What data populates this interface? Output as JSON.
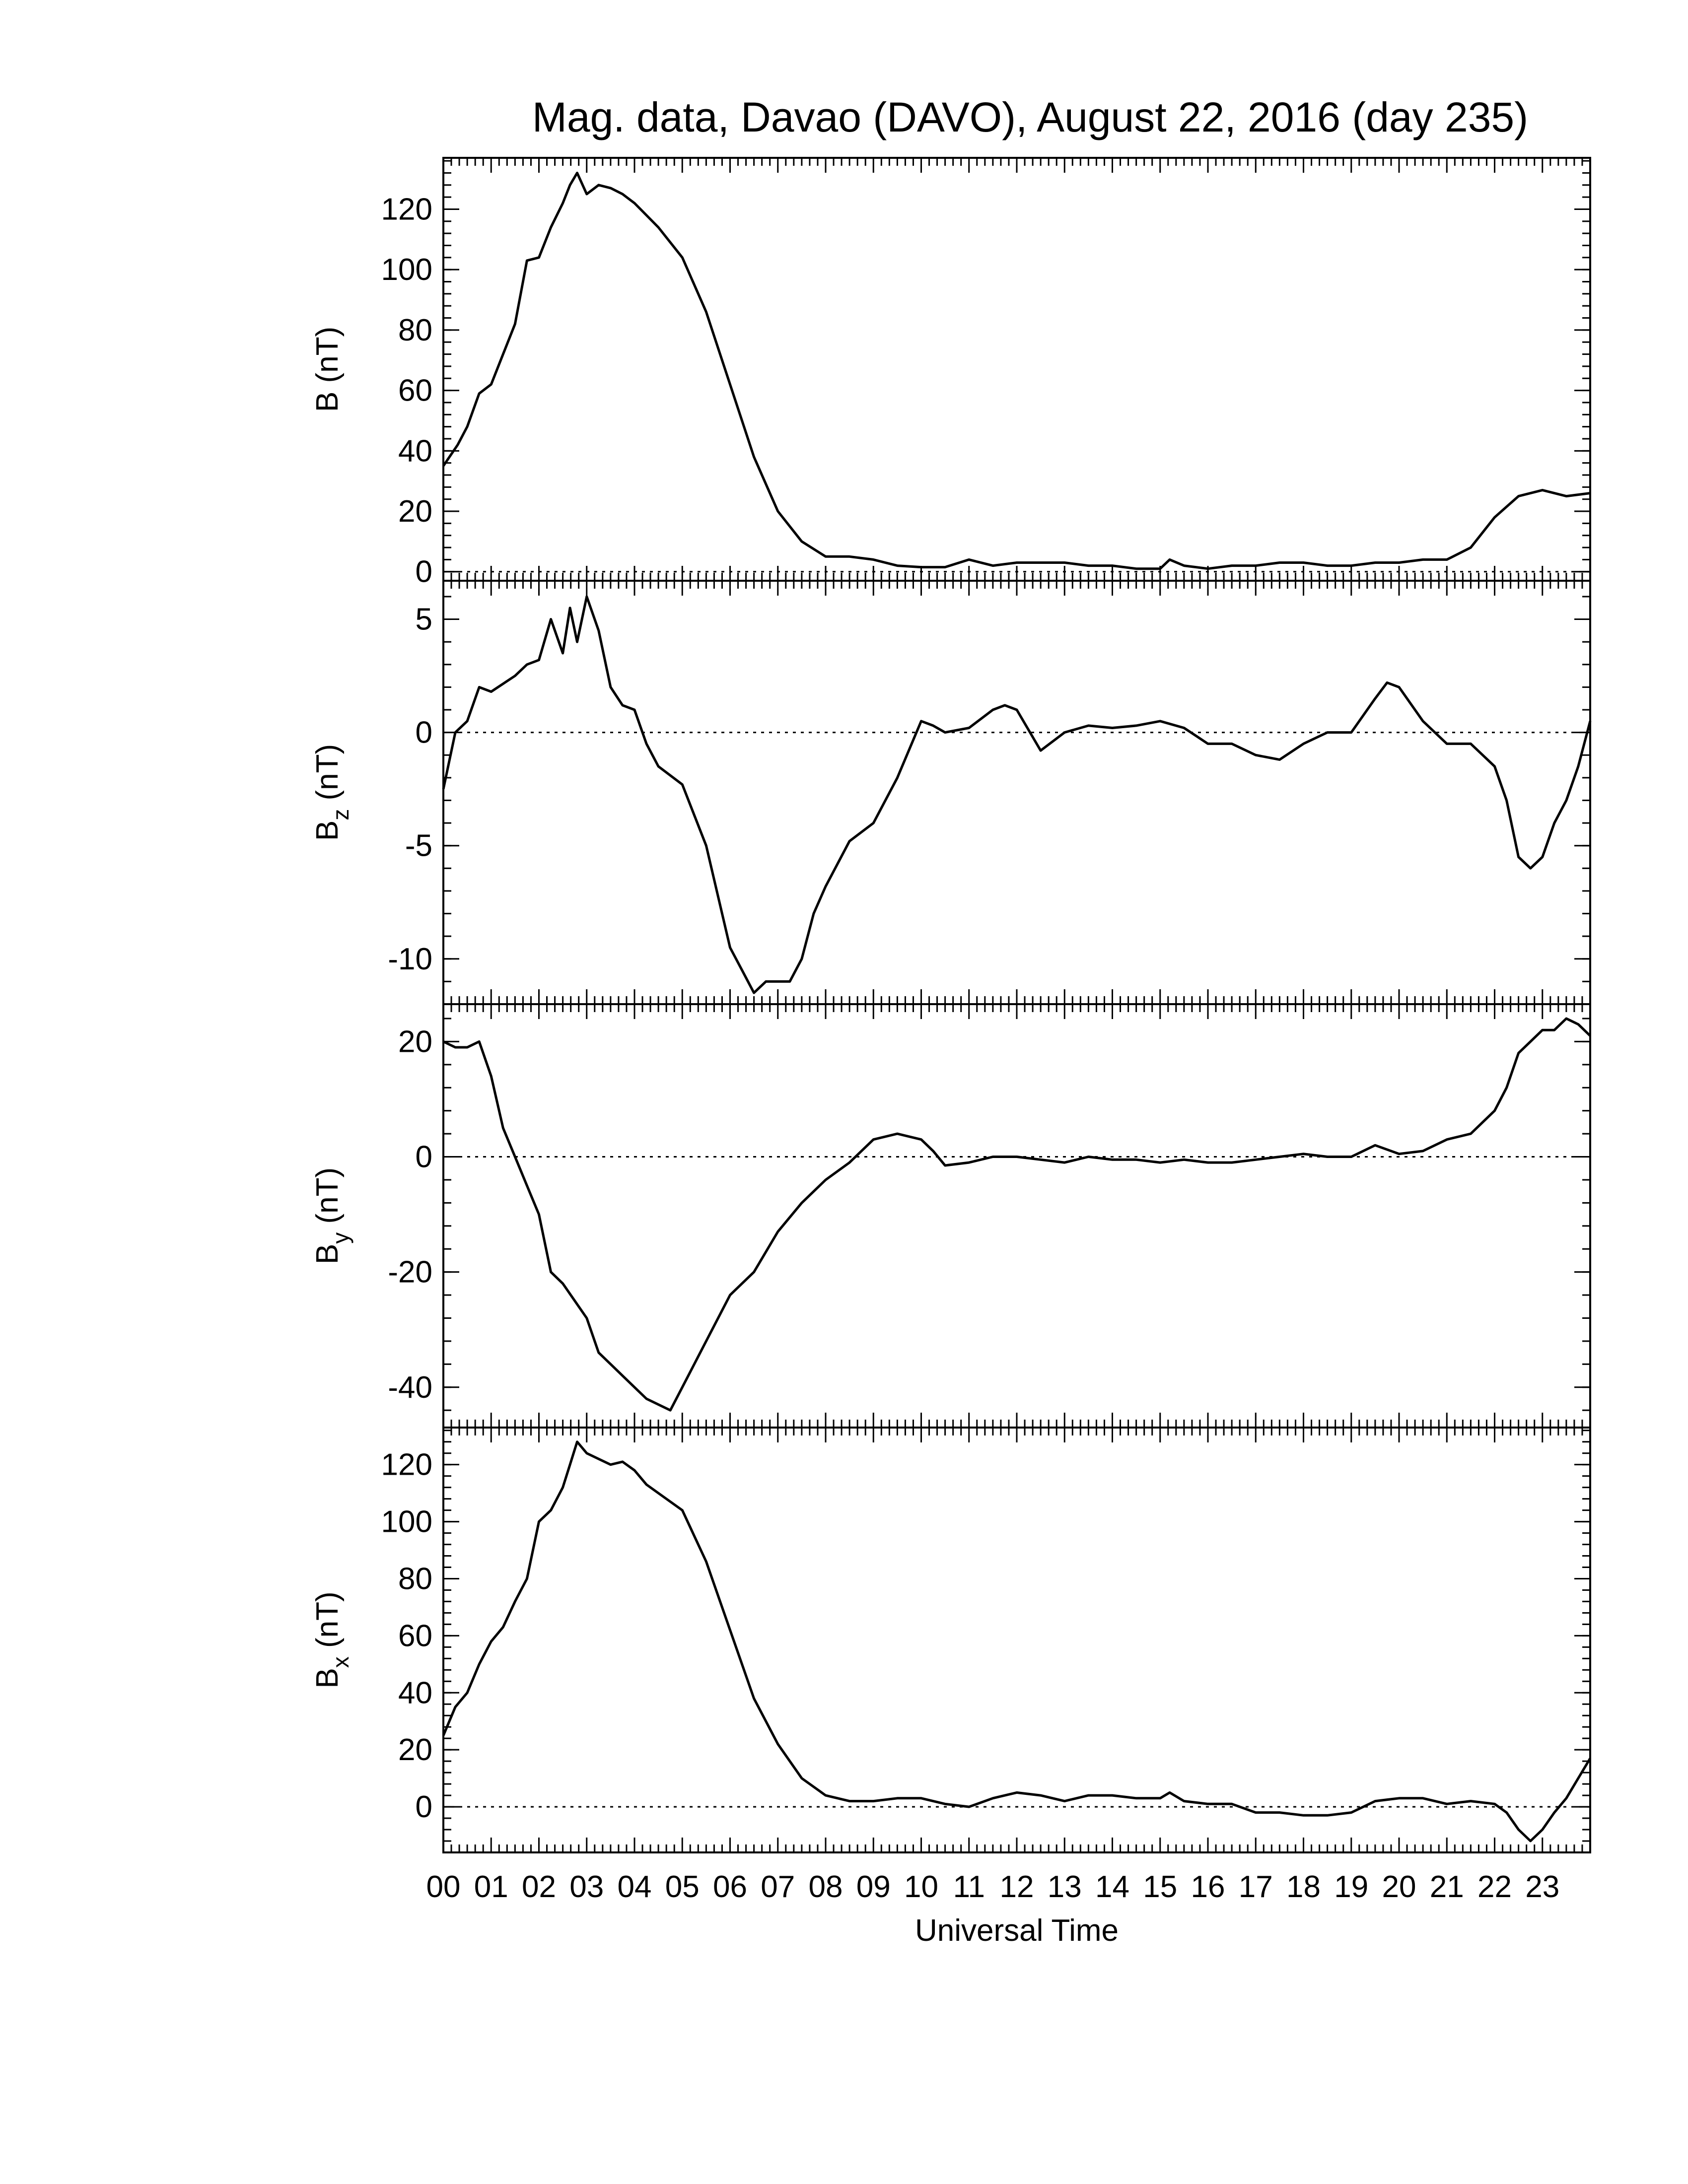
{
  "chart_data": {
    "type": "line",
    "title": "Mag. data, Davao (DAVO), August 22, 2016 (day 235)",
    "xlabel": "Universal Time",
    "x_tick_labels": [
      "00",
      "01",
      "02",
      "03",
      "04",
      "05",
      "06",
      "07",
      "08",
      "09",
      "10",
      "11",
      "12",
      "13",
      "14",
      "15",
      "16",
      "17",
      "18",
      "19",
      "20",
      "21",
      "22",
      "23"
    ],
    "xlim": [
      0,
      24
    ],
    "panels": [
      {
        "id": "B",
        "ylabel_main": "B",
        "ylabel_sub": "",
        "ylabel_unit": " (nT)",
        "ylim": [
          -3,
          137
        ],
        "yticks": [
          0,
          20,
          40,
          60,
          80,
          100,
          120
        ],
        "yticklabels": [
          "0",
          "20",
          "40",
          "60",
          "80",
          "100",
          "120"
        ],
        "zero_line": true,
        "x": [
          0,
          0.3,
          0.5,
          0.75,
          1.0,
          1.25,
          1.5,
          1.75,
          2.0,
          2.25,
          2.5,
          2.65,
          2.8,
          3.0,
          3.25,
          3.5,
          3.75,
          4.0,
          4.25,
          4.5,
          5.0,
          5.5,
          6.0,
          6.5,
          7.0,
          7.5,
          8.0,
          8.5,
          9.0,
          9.5,
          10.0,
          10.5,
          11.0,
          11.5,
          12.0,
          12.5,
          13.0,
          13.5,
          14.0,
          14.5,
          15.0,
          15.2,
          15.5,
          16.0,
          16.5,
          17.0,
          17.5,
          18.0,
          18.5,
          19.0,
          19.5,
          20.0,
          20.5,
          21.0,
          21.5,
          22.0,
          22.5,
          23.0,
          23.5,
          24.0
        ],
        "values": [
          35,
          42,
          48,
          59,
          62,
          72,
          82,
          103,
          104,
          114,
          122,
          128,
          132,
          125,
          128,
          127,
          125,
          122,
          118,
          114,
          104,
          86,
          62,
          38,
          20,
          10,
          5,
          5,
          4,
          2,
          1.5,
          1.5,
          4,
          2,
          3,
          3,
          3,
          2,
          2,
          1,
          1,
          4,
          2,
          1,
          2,
          2,
          3,
          3,
          2,
          2,
          3,
          3,
          4,
          4,
          8,
          18,
          25,
          27,
          25,
          26
        ]
      },
      {
        "id": "Bz",
        "ylabel_main": "B",
        "ylabel_sub": "z",
        "ylabel_unit": " (nT)",
        "ylim": [
          -12,
          6.7
        ],
        "yticks": [
          -10,
          -5,
          0,
          5
        ],
        "yticklabels": [
          "-10",
          "-5",
          "0",
          "5"
        ],
        "zero_line": true,
        "x": [
          0,
          0.25,
          0.5,
          0.75,
          1.0,
          1.5,
          1.75,
          2.0,
          2.25,
          2.5,
          2.65,
          2.8,
          3.0,
          3.25,
          3.5,
          3.75,
          4.0,
          4.25,
          4.5,
          5.0,
          5.5,
          6.0,
          6.25,
          6.5,
          6.75,
          7.0,
          7.25,
          7.5,
          7.75,
          8.0,
          8.5,
          9.0,
          9.5,
          10.0,
          10.25,
          10.5,
          11.0,
          11.5,
          11.75,
          12.0,
          12.5,
          13.0,
          13.5,
          14.0,
          14.5,
          15.0,
          15.5,
          16.0,
          16.5,
          17.0,
          17.5,
          18.0,
          18.5,
          19.0,
          19.5,
          19.75,
          20.0,
          20.5,
          21.0,
          21.5,
          22.0,
          22.25,
          22.5,
          22.75,
          23.0,
          23.25,
          23.5,
          23.75,
          24.0
        ],
        "values": [
          -2.5,
          0,
          0.5,
          2,
          1.8,
          2.5,
          3,
          3.2,
          5,
          3.5,
          5.5,
          4,
          6,
          4.5,
          2,
          1.2,
          1,
          -0.5,
          -1.5,
          -2.3,
          -5,
          -9.5,
          -10.5,
          -11.5,
          -11,
          -11,
          -11,
          -10,
          -8,
          -6.8,
          -4.8,
          -4,
          -2,
          0.5,
          0.3,
          0,
          0.2,
          1,
          1.2,
          1,
          -0.8,
          0,
          0.3,
          0.2,
          0.3,
          0.5,
          0.2,
          -0.5,
          -0.5,
          -1,
          -1.2,
          -0.5,
          0,
          0,
          1.5,
          2.2,
          2,
          0.5,
          -0.5,
          -0.5,
          -1.5,
          -3,
          -5.5,
          -6,
          -5.5,
          -4,
          -3,
          -1.5,
          0.5
        ]
      },
      {
        "id": "By",
        "ylabel_main": "B",
        "ylabel_sub": "y",
        "ylabel_unit": " (nT)",
        "ylim": [
          -47,
          26.5
        ],
        "yticks": [
          -40,
          -20,
          0,
          20
        ],
        "yticklabels": [
          "-40",
          "-20",
          "0",
          "20"
        ],
        "zero_line": true,
        "x": [
          0,
          0.25,
          0.5,
          0.75,
          1.0,
          1.25,
          1.5,
          1.75,
          2.0,
          2.25,
          2.5,
          2.75,
          3.0,
          3.25,
          3.5,
          3.75,
          4.0,
          4.25,
          4.5,
          4.75,
          5.0,
          5.5,
          6.0,
          6.5,
          7.0,
          7.5,
          8.0,
          8.5,
          9.0,
          9.5,
          10.0,
          10.25,
          10.5,
          11.0,
          11.5,
          12.0,
          12.5,
          13.0,
          13.5,
          14.0,
          14.5,
          15.0,
          15.5,
          16.0,
          16.5,
          17.0,
          17.5,
          18.0,
          18.5,
          19.0,
          19.5,
          20.0,
          20.5,
          21.0,
          21.5,
          22.0,
          22.25,
          22.5,
          22.75,
          23.0,
          23.25,
          23.5,
          23.75,
          24.0
        ],
        "values": [
          20,
          19,
          19,
          20,
          14,
          5,
          0,
          -5,
          -10,
          -20,
          -22,
          -25,
          -28,
          -34,
          -36,
          -38,
          -40,
          -42,
          -43,
          -44,
          -40,
          -32,
          -24,
          -20,
          -13,
          -8,
          -4,
          -1,
          3,
          4,
          3,
          1,
          -1.5,
          -1,
          0,
          0,
          -0.5,
          -1,
          0,
          -0.5,
          -0.5,
          -1,
          -0.5,
          -1,
          -1,
          -0.5,
          0,
          0.5,
          0,
          0,
          2,
          0.5,
          1,
          3,
          4,
          8,
          12,
          18,
          20,
          22,
          22,
          24,
          23,
          21
        ]
      },
      {
        "id": "Bx",
        "ylabel_main": "B",
        "ylabel_sub": "x",
        "ylabel_unit": " (nT)",
        "ylim": [
          -16,
          133
        ],
        "yticks": [
          0,
          20,
          40,
          60,
          80,
          100,
          120
        ],
        "yticklabels": [
          "0",
          "20",
          "40",
          "60",
          "80",
          "100",
          "120"
        ],
        "zero_line": true,
        "x": [
          0,
          0.25,
          0.5,
          0.75,
          1.0,
          1.25,
          1.5,
          1.75,
          2.0,
          2.25,
          2.5,
          2.65,
          2.8,
          3.0,
          3.25,
          3.5,
          3.75,
          4.0,
          4.25,
          4.5,
          5.0,
          5.5,
          6.0,
          6.5,
          7.0,
          7.5,
          8.0,
          8.5,
          9.0,
          9.5,
          10.0,
          10.5,
          11.0,
          11.5,
          12.0,
          12.5,
          13.0,
          13.5,
          14.0,
          14.5,
          15.0,
          15.2,
          15.5,
          16.0,
          16.5,
          17.0,
          17.5,
          18.0,
          18.5,
          19.0,
          19.5,
          20.0,
          20.5,
          21.0,
          21.5,
          22.0,
          22.25,
          22.5,
          22.75,
          23.0,
          23.25,
          23.5,
          23.75,
          24.0
        ],
        "values": [
          25,
          35,
          40,
          50,
          58,
          63,
          72,
          80,
          100,
          104,
          112,
          120,
          128,
          124,
          122,
          120,
          121,
          118,
          113,
          110,
          104,
          86,
          62,
          38,
          22,
          10,
          4,
          2,
          2,
          3,
          3,
          1,
          0,
          3,
          5,
          4,
          2,
          4,
          4,
          3,
          3,
          5,
          2,
          1,
          1,
          -2,
          -2,
          -3,
          -3,
          -2,
          2,
          3,
          3,
          1,
          2,
          1,
          -2,
          -8,
          -12,
          -8,
          -2,
          3,
          10,
          17
        ]
      }
    ]
  }
}
